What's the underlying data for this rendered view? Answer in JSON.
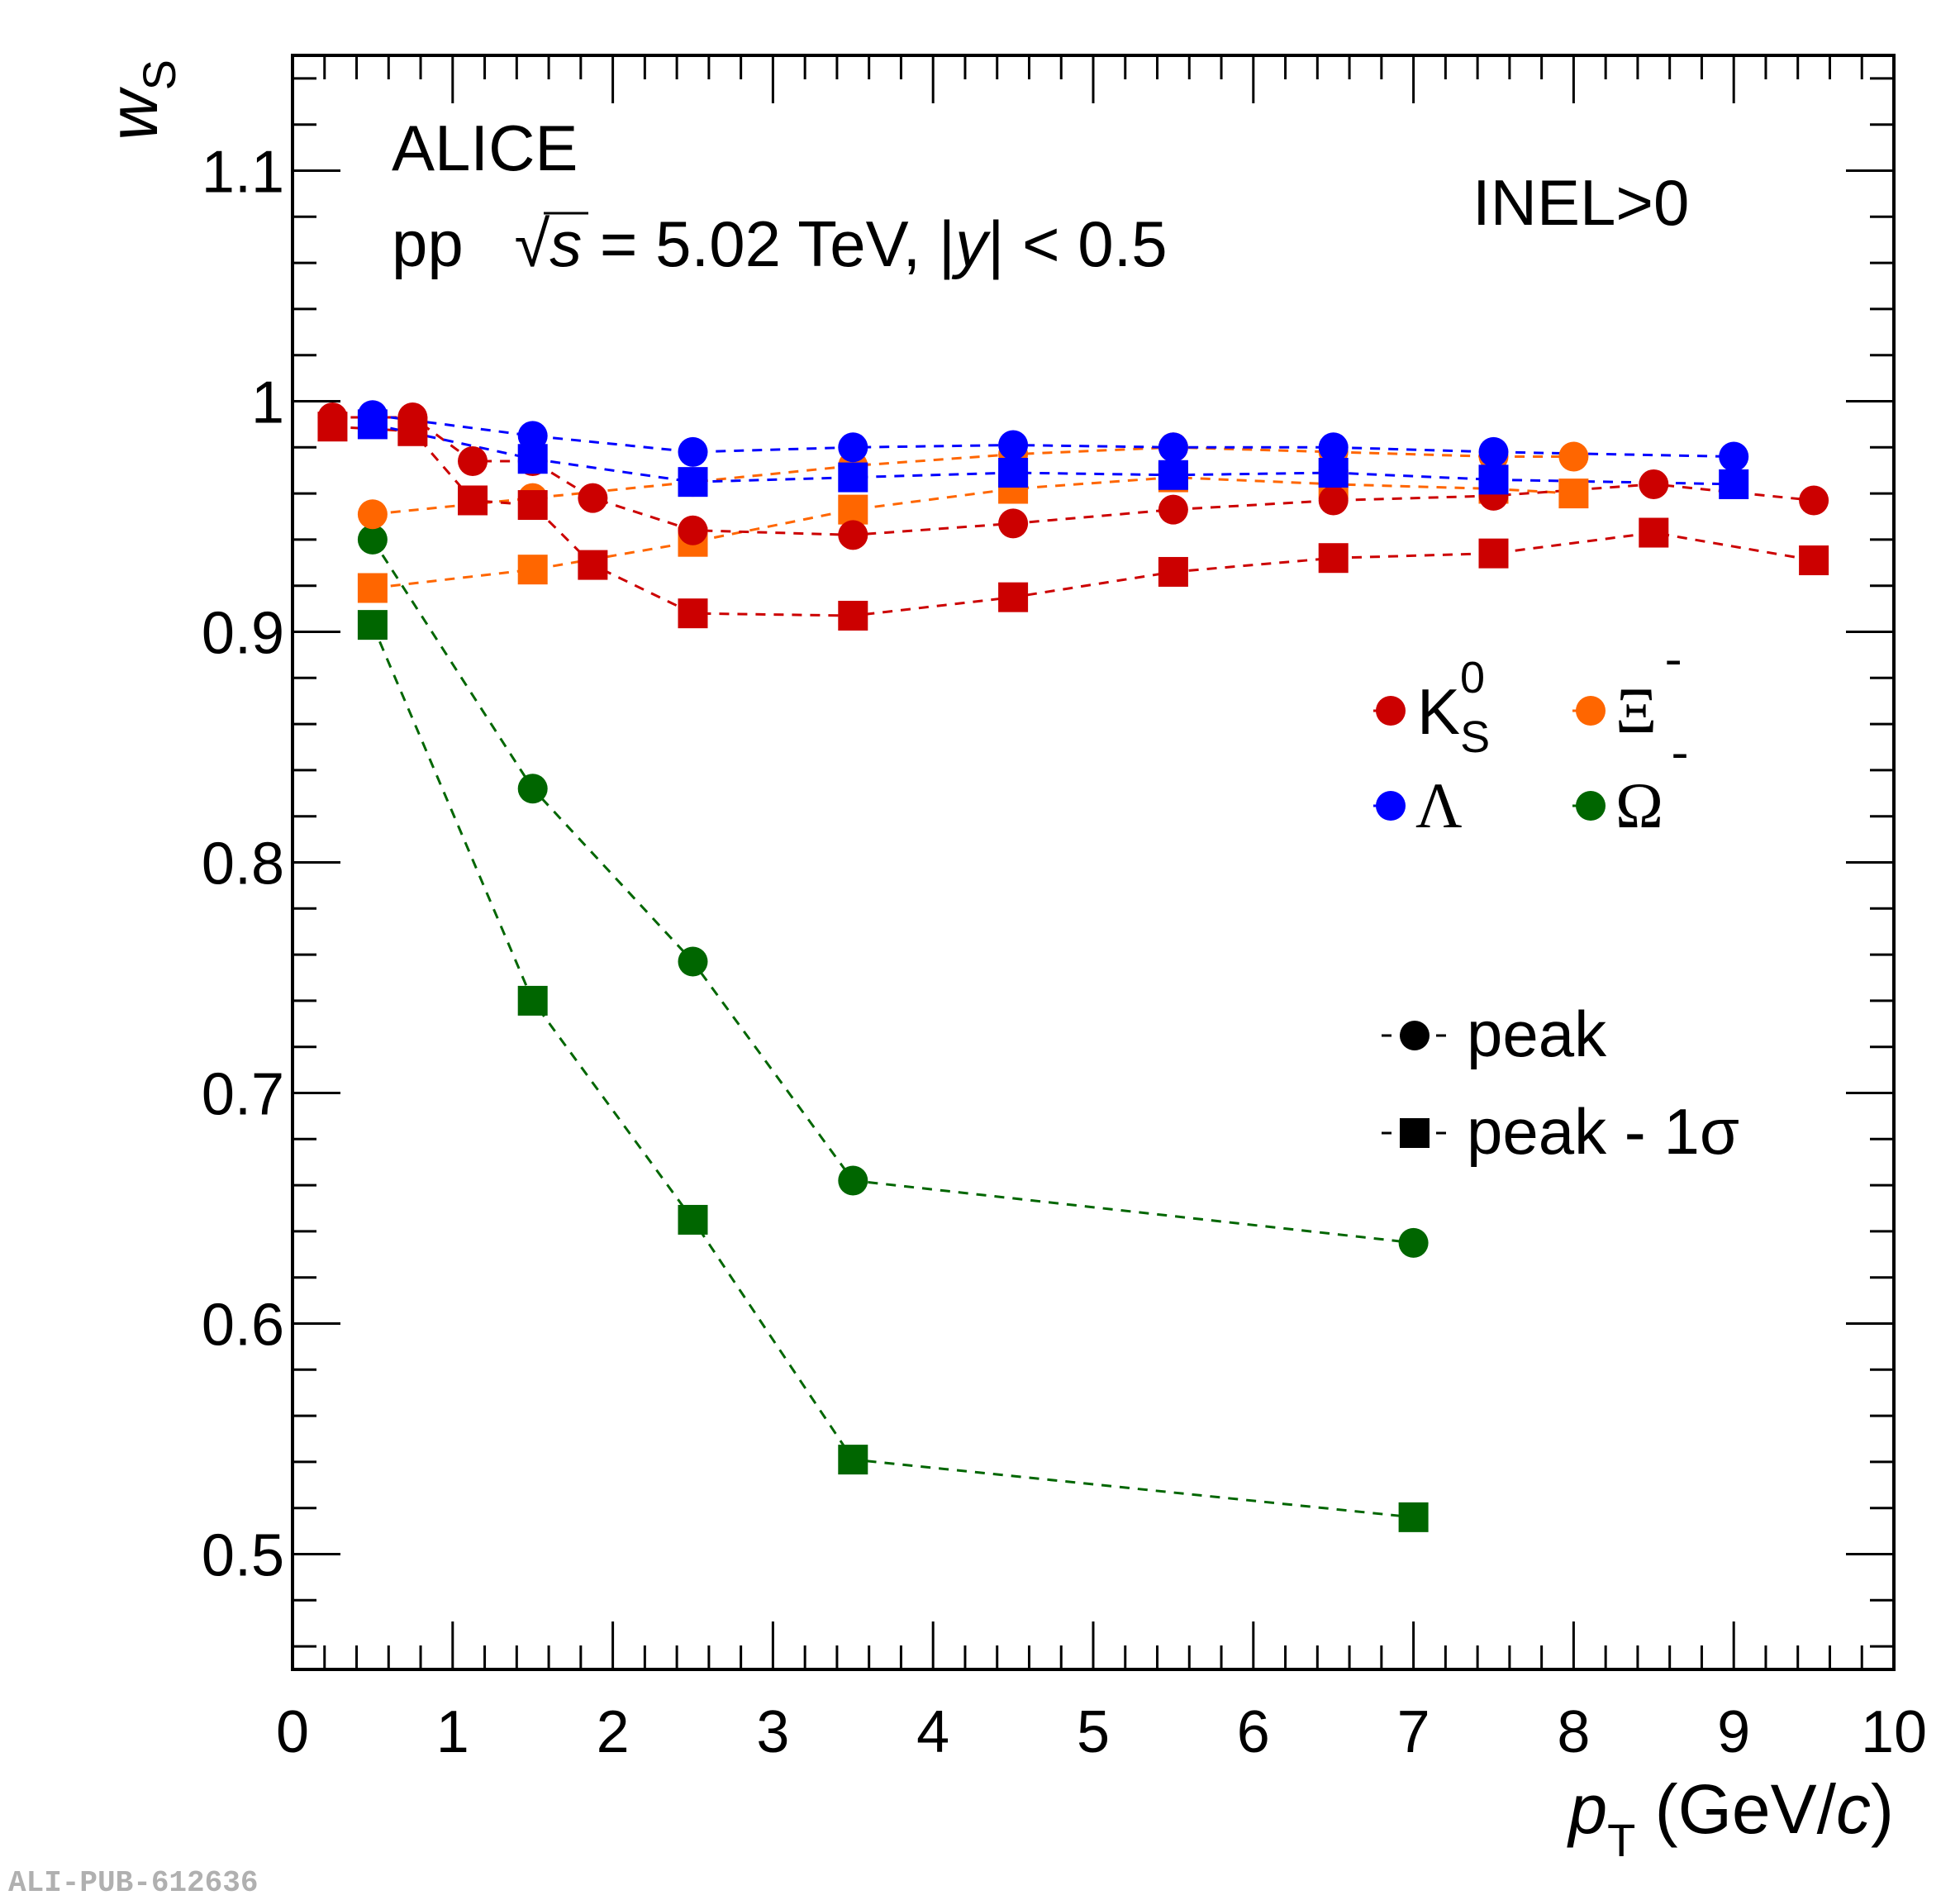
{
  "chart_data": {
    "type": "scatter",
    "xlabel": "p_T (GeV/c)",
    "xlabel_parts": {
      "var": "p",
      "sub": "T",
      "unit": " (GeV/",
      "unit_var": "c",
      "close": ")"
    },
    "ylabel": "w_S",
    "ylabel_parts": {
      "var": "w",
      "sub": "S"
    },
    "xlim": [
      0,
      10
    ],
    "ylim": [
      0.45,
      1.15
    ],
    "x_ticks": [
      0,
      1,
      2,
      3,
      4,
      5,
      6,
      7,
      8,
      9,
      10
    ],
    "x_tick_labels": [
      "0",
      "1",
      "2",
      "3",
      "4",
      "5",
      "6",
      "7",
      "8",
      "9",
      "10"
    ],
    "y_ticks": [
      0.5,
      0.6,
      0.7,
      0.8,
      0.9,
      1.0,
      1.1
    ],
    "y_tick_labels": [
      "0.5",
      "0.6",
      "0.7",
      "0.8",
      "0.9",
      "1",
      "1.1"
    ],
    "grid": false,
    "annotations": {
      "experiment": "ALICE",
      "system": "pp",
      "energy": "= 5.02 TeV, |y| < 0.5",
      "energy_parts": {
        "sqrt": "√",
        "s": "s",
        "eq": " = 5.02 TeV, |",
        "y": "y",
        "rest": "| < 0.5"
      },
      "event_class": "INEL>0"
    },
    "legend_species": [
      {
        "name": "K0S",
        "label": "K",
        "sup": "0",
        "sub": "S",
        "color": "#cc0000"
      },
      {
        "name": "Xi-",
        "label": "Ξ",
        "sup": "-",
        "sub": "",
        "color": "#ff6600"
      },
      {
        "name": "Lambda",
        "label": "Λ",
        "sup": "",
        "sub": "",
        "color": "#0000ff"
      },
      {
        "name": "Omega-",
        "label": "Ω",
        "sup": "-",
        "sub": "",
        "color": "#006600"
      }
    ],
    "legend_species_position": "right-middle",
    "legend_markers": [
      {
        "marker": "circle",
        "label": "peak"
      },
      {
        "marker": "square",
        "label": "peak - 1σ"
      }
    ],
    "legend_markers_position": "right-lower",
    "series": [
      {
        "name": "K0S peak",
        "species": "K0S",
        "marker": "circle",
        "color": "#cc0000",
        "x": [
          0.25,
          0.75,
          1.125,
          1.5,
          1.875,
          2.5,
          3.5,
          4.5,
          5.5,
          6.5,
          7.5,
          8.5,
          9.5
        ],
        "y": [
          0.993,
          0.993,
          0.974,
          0.974,
          0.958,
          0.944,
          0.942,
          0.947,
          0.953,
          0.957,
          0.959,
          0.964,
          0.957
        ]
      },
      {
        "name": "K0S peak - 1sigma",
        "species": "K0S",
        "marker": "square",
        "color": "#cc0000",
        "x": [
          0.25,
          0.75,
          1.125,
          1.5,
          1.875,
          2.5,
          3.5,
          4.5,
          5.5,
          6.5,
          7.5,
          8.5,
          9.5
        ],
        "y": [
          0.989,
          0.987,
          0.957,
          0.955,
          0.929,
          0.908,
          0.907,
          0.915,
          0.926,
          0.932,
          0.934,
          0.943,
          0.931
        ]
      },
      {
        "name": "Lambda peak",
        "species": "Lambda",
        "marker": "circle",
        "color": "#0000ff",
        "x": [
          0.5,
          1.5,
          2.5,
          3.5,
          4.5,
          5.5,
          6.5,
          7.5,
          9.0
        ],
        "y": [
          0.994,
          0.985,
          0.978,
          0.98,
          0.981,
          0.98,
          0.98,
          0.978,
          0.976
        ]
      },
      {
        "name": "Lambda peak - 1sigma",
        "species": "Lambda",
        "marker": "square",
        "color": "#0000ff",
        "x": [
          0.5,
          1.5,
          2.5,
          3.5,
          4.5,
          5.5,
          6.5,
          7.5,
          9.0
        ],
        "y": [
          0.99,
          0.975,
          0.965,
          0.967,
          0.969,
          0.968,
          0.969,
          0.966,
          0.964
        ]
      },
      {
        "name": "Xi- peak",
        "species": "Xi-",
        "marker": "circle",
        "color": "#ff6600",
        "x": [
          0.5,
          1.5,
          2.5,
          3.5,
          4.5,
          5.5,
          6.5,
          7.5,
          8.0
        ],
        "y": [
          0.951,
          0.958,
          0.965,
          0.972,
          0.977,
          0.98,
          0.978,
          0.976,
          0.976
        ]
      },
      {
        "name": "Xi- peak - 1sigma",
        "species": "Xi-",
        "marker": "square",
        "color": "#ff6600",
        "x": [
          0.5,
          1.5,
          2.5,
          3.5,
          4.5,
          5.5,
          6.5,
          7.5,
          8.0
        ],
        "y": [
          0.919,
          0.927,
          0.939,
          0.953,
          0.962,
          0.967,
          0.964,
          0.962,
          0.96
        ]
      },
      {
        "name": "Omega- peak",
        "species": "Omega-",
        "marker": "circle",
        "color": "#006600",
        "x": [
          0.5,
          1.5,
          2.5,
          3.5,
          7.0
        ],
        "y": [
          0.94,
          0.832,
          0.757,
          0.662,
          0.635
        ]
      },
      {
        "name": "Omega- peak - 1sigma",
        "species": "Omega-",
        "marker": "square",
        "color": "#006600",
        "x": [
          0.5,
          1.5,
          2.5,
          3.5,
          7.0
        ],
        "y": [
          0.903,
          0.74,
          0.645,
          0.541,
          0.516
        ]
      }
    ],
    "draw_order": [
      7,
      6,
      5,
      4,
      1,
      0,
      3,
      2
    ]
  },
  "watermark": "ALI-PUB-612636"
}
